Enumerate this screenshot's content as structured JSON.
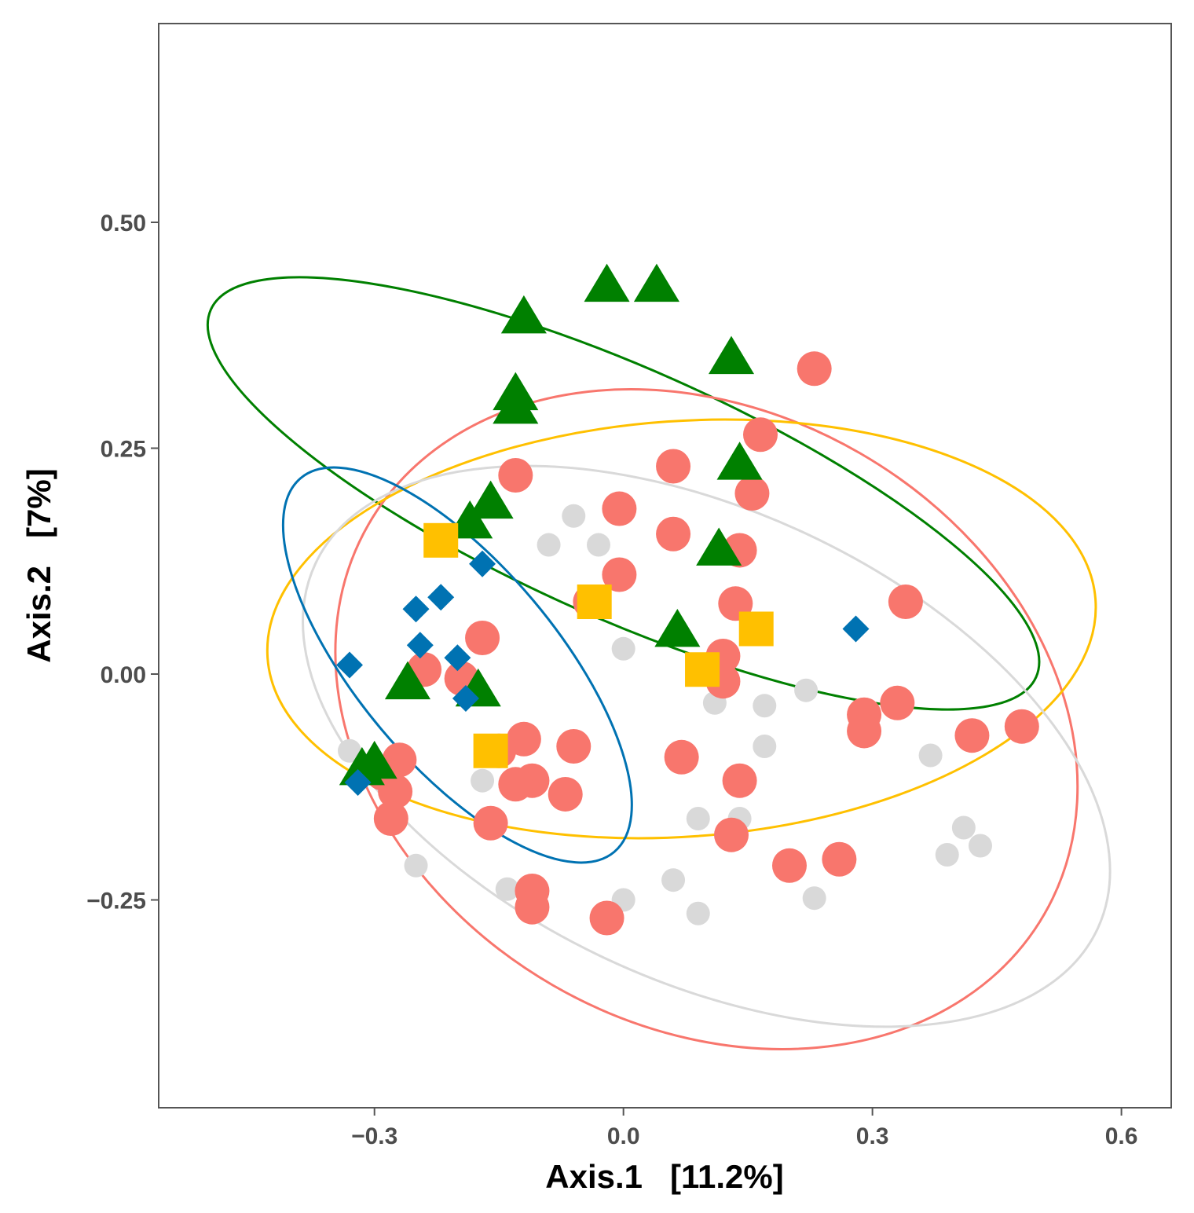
{
  "chart_data": {
    "type": "scatter",
    "title": "",
    "xlabel": "Axis.1   [11.2%]",
    "ylabel": "Axis.2   [7%]",
    "xlim": [
      -0.56,
      0.66
    ],
    "ylim": [
      -0.48,
      0.72
    ],
    "x_ticks": [
      -0.3,
      0.0,
      0.3,
      0.6
    ],
    "x_tick_labels": [
      "−0.3",
      "0.0",
      "0.3",
      "0.6"
    ],
    "y_ticks": [
      0.5,
      0.25,
      0.0,
      -0.25
    ],
    "y_tick_labels": [
      "0.50",
      "0.25",
      "0.00",
      "−0.25"
    ],
    "grid": false,
    "legend": "none",
    "series": [
      {
        "name": "grey",
        "shape": "circle",
        "color": "#d9d9d9",
        "size": "small",
        "points": [
          [
            -0.06,
            0.175
          ],
          [
            -0.09,
            0.143
          ],
          [
            -0.03,
            0.143
          ],
          [
            -0.33,
            -0.085
          ],
          [
            -0.17,
            -0.118
          ],
          [
            -0.25,
            -0.212
          ],
          [
            -0.14,
            -0.238
          ],
          [
            0.0,
            0.028
          ],
          [
            0.11,
            -0.032
          ],
          [
            0.17,
            -0.035
          ],
          [
            0.22,
            -0.018
          ],
          [
            0.17,
            -0.08
          ],
          [
            0.09,
            -0.16
          ],
          [
            0.14,
            -0.16
          ],
          [
            0.06,
            -0.228
          ],
          [
            0.0,
            -0.25
          ],
          [
            0.09,
            -0.265
          ],
          [
            0.23,
            -0.248
          ],
          [
            0.37,
            -0.09
          ],
          [
            0.39,
            -0.2
          ],
          [
            0.41,
            -0.17
          ],
          [
            0.43,
            -0.19
          ]
        ]
      },
      {
        "name": "salmon",
        "shape": "circle",
        "color": "#f8766d",
        "size": "large",
        "points": [
          [
            0.23,
            0.338
          ],
          [
            0.165,
            0.265
          ],
          [
            0.06,
            0.23
          ],
          [
            0.155,
            0.2
          ],
          [
            -0.13,
            0.22
          ],
          [
            -0.005,
            0.183
          ],
          [
            0.06,
            0.155
          ],
          [
            0.14,
            0.137
          ],
          [
            -0.005,
            0.11
          ],
          [
            0.135,
            0.078
          ],
          [
            -0.04,
            0.08
          ],
          [
            0.34,
            0.08
          ],
          [
            -0.17,
            0.04
          ],
          [
            0.12,
            0.02
          ],
          [
            -0.24,
            0.005
          ],
          [
            -0.195,
            -0.005
          ],
          [
            0.12,
            -0.008
          ],
          [
            0.33,
            -0.032
          ],
          [
            0.29,
            -0.045
          ],
          [
            0.29,
            -0.063
          ],
          [
            0.42,
            -0.068
          ],
          [
            0.48,
            -0.058
          ],
          [
            -0.12,
            -0.072
          ],
          [
            -0.06,
            -0.08
          ],
          [
            -0.15,
            -0.085
          ],
          [
            0.07,
            -0.092
          ],
          [
            -0.27,
            -0.095
          ],
          [
            -0.29,
            -0.11
          ],
          [
            -0.11,
            -0.118
          ],
          [
            -0.13,
            -0.122
          ],
          [
            0.14,
            -0.118
          ],
          [
            -0.275,
            -0.13
          ],
          [
            -0.07,
            -0.133
          ],
          [
            -0.28,
            -0.16
          ],
          [
            -0.16,
            -0.165
          ],
          [
            0.13,
            -0.178
          ],
          [
            0.2,
            -0.212
          ],
          [
            0.26,
            -0.205
          ],
          [
            -0.11,
            -0.24
          ],
          [
            -0.11,
            -0.258
          ],
          [
            -0.02,
            -0.27
          ]
        ]
      },
      {
        "name": "green",
        "shape": "triangle",
        "color": "#008000",
        "size": "large",
        "points": [
          [
            -0.02,
            0.43
          ],
          [
            0.04,
            0.43
          ],
          [
            -0.12,
            0.395
          ],
          [
            0.13,
            0.35
          ],
          [
            -0.13,
            0.31
          ],
          [
            -0.13,
            0.295
          ],
          [
            0.14,
            0.233
          ],
          [
            -0.16,
            0.19
          ],
          [
            -0.185,
            0.168
          ],
          [
            0.115,
            0.138
          ],
          [
            0.065,
            0.048
          ],
          [
            -0.26,
            -0.01
          ],
          [
            -0.175,
            -0.018
          ],
          [
            -0.3,
            -0.098
          ],
          [
            -0.315,
            -0.105
          ]
        ]
      },
      {
        "name": "yellow",
        "shape": "square",
        "color": "#ffc000",
        "size": "large",
        "points": [
          [
            -0.22,
            0.148
          ],
          [
            -0.035,
            0.08
          ],
          [
            0.16,
            0.05
          ],
          [
            0.095,
            0.005
          ],
          [
            -0.16,
            -0.085
          ]
        ]
      },
      {
        "name": "blue",
        "shape": "diamond",
        "color": "#0072b2",
        "size": "medium",
        "points": [
          [
            -0.17,
            0.122
          ],
          [
            -0.22,
            0.085
          ],
          [
            -0.25,
            0.072
          ],
          [
            -0.245,
            0.032
          ],
          [
            -0.2,
            0.018
          ],
          [
            -0.33,
            0.01
          ],
          [
            -0.19,
            -0.027
          ],
          [
            0.28,
            0.05
          ],
          [
            -0.32,
            -0.12
          ]
        ]
      }
    ],
    "ellipses": [
      {
        "name": "green",
        "color": "#008000",
        "cx": 0.0,
        "cy": 0.2,
        "rx": 0.15,
        "ry": 0.5,
        "angle_deg": 66
      },
      {
        "name": "salmon",
        "color": "#f8766d",
        "cx": 0.1,
        "cy": -0.05,
        "rx": 0.47,
        "ry": 0.34,
        "angle_deg": -30
      },
      {
        "name": "yellow",
        "color": "#ffc000",
        "cx": 0.07,
        "cy": 0.05,
        "rx": 0.5,
        "ry": 0.23,
        "angle_deg": 4
      },
      {
        "name": "grey",
        "color": "#d9d9d9",
        "cx": 0.1,
        "cy": -0.08,
        "rx": 0.52,
        "ry": 0.26,
        "angle_deg": -25
      },
      {
        "name": "blue",
        "color": "#0072b2",
        "cx": -0.2,
        "cy": 0.01,
        "rx": 0.12,
        "ry": 0.27,
        "angle_deg": 40
      }
    ]
  }
}
